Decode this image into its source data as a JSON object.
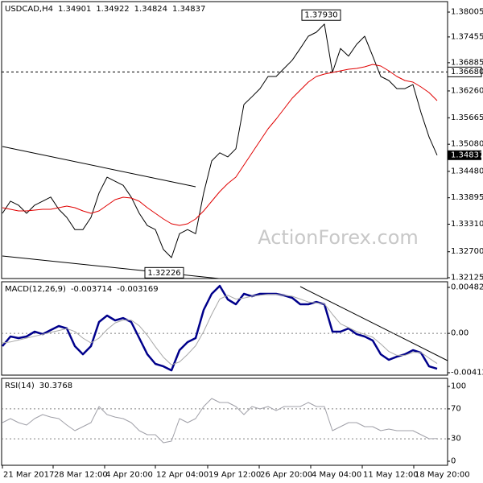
{
  "chart_data": [
    {
      "type": "line",
      "title": "USDCAD,H4",
      "ohlc": [
        1.34901,
        1.34922,
        1.34824,
        1.34837
      ],
      "watermark": "ActionForex.com",
      "x": [
        0,
        1,
        2,
        3,
        4,
        5,
        6,
        7,
        8,
        9,
        10,
        11,
        12,
        13,
        14,
        15,
        16,
        17,
        18,
        19,
        20,
        21,
        22,
        23,
        24,
        25,
        26,
        27,
        28,
        29,
        30,
        31,
        32,
        33,
        34,
        35,
        36,
        37,
        38,
        39,
        40,
        41,
        42,
        43,
        44,
        45,
        46,
        47,
        48,
        49,
        50,
        51,
        52,
        53,
        54
      ],
      "xlim": [
        -0.1,
        55.3
      ],
      "ylim": [
        1.32107,
        1.38237
      ],
      "yticks": [
        1.38005,
        1.37455,
        1.36885,
        {
          "value": 1.3626,
          "label": "1.36260"
        },
        1.35665,
        {
          "value": 1.3508,
          "label": "1.35080"
        },
        {
          "value": 1.3448,
          "label": "1.34480"
        },
        1.33895,
        {
          "value": 1.3331,
          "label": "1.33310"
        },
        {
          "value": 1.327,
          "label": "1.32700"
        },
        1.32125
      ],
      "grid": false,
      "price_label": true,
      "levels": [
        {
          "value": 1.3668,
          "label": "1.36680"
        }
      ],
      "annotations": [
        {
          "value": 1.3793,
          "label": "1.37930",
          "x": 37.2
        },
        {
          "value": 1.32226,
          "x": 17.7
        }
      ],
      "series": [
        {
          "color": "#000000",
          "values": [
            1.3355,
            1.3382,
            1.3373,
            1.3355,
            1.3373,
            1.3382,
            1.3391,
            1.3364,
            1.3346,
            1.3319,
            1.3319,
            1.3346,
            1.34,
            1.3435,
            1.3426,
            1.3417,
            1.3391,
            1.3355,
            1.3328,
            1.3319,
            1.3275,
            1.3257,
            1.331,
            1.3319,
            1.331,
            1.34,
            1.3471,
            1.3489,
            1.348,
            1.3498,
            1.3596,
            1.3613,
            1.3631,
            1.3658,
            1.3658,
            1.3676,
            1.3694,
            1.372,
            1.3747,
            1.3756,
            1.3774,
            1.3667,
            1.372,
            1.3703,
            1.3729,
            1.3747,
            1.3703,
            1.3658,
            1.3649,
            1.3631,
            1.3631,
            1.364,
            1.3578,
            1.3524,
            1.34837
          ]
        },
        {
          "color": "#e00000",
          "values": [
            1.33675,
            1.33639,
            1.33603,
            1.33603,
            1.33621,
            1.33639,
            1.33639,
            1.33675,
            1.3371,
            1.33675,
            1.33603,
            1.3355,
            1.33603,
            1.33728,
            1.33853,
            1.33907,
            1.33889,
            1.33818,
            1.33675,
            1.3355,
            1.33425,
            1.33318,
            1.33283,
            1.33318,
            1.33425,
            1.33603,
            1.33818,
            1.34031,
            1.34209,
            1.34352,
            1.34619,
            1.34886,
            1.35154,
            1.35421,
            1.35635,
            1.35867,
            1.36098,
            1.36276,
            1.36455,
            1.36579,
            1.36633,
            1.36669,
            1.36704,
            1.3674,
            1.36758,
            1.36793,
            1.36847,
            1.36811,
            1.36704,
            1.36579,
            1.3649,
            1.36455,
            1.36348,
            1.36223,
            1.36045
          ]
        }
      ]
    },
    {
      "type": "line",
      "title": "MACD(12,26,9)",
      "x": [
        0,
        1,
        2,
        3,
        4,
        5,
        6,
        7,
        8,
        9,
        10,
        11,
        12,
        13,
        14,
        15,
        16,
        17,
        18,
        19,
        20,
        21,
        22,
        23,
        24,
        25,
        26,
        27,
        28,
        29,
        30,
        31,
        32,
        33,
        34,
        35,
        36,
        37,
        38,
        39,
        40,
        41,
        42,
        43,
        44,
        45,
        46,
        47,
        48,
        49,
        50,
        51,
        52,
        53,
        54
      ],
      "xlim": [
        -0.1,
        55.3
      ],
      "ylim": [
        -0.004382,
        0.005418
      ],
      "yticks": [
        0.004827,
        {
          "value": 0,
          "label": "0.00"
        },
        -0.004129
      ],
      "grid": true,
      "series": [
        {
          "color": "#00008b",
          "width": 2.5,
          "values": [
            -0.00134,
            -0.00033,
            -0.0005,
            -0.00033,
            0.00018,
            -8e-05,
            0.00035,
            0.00077,
            0.00052,
            -0.00134,
            -0.00219,
            -0.00134,
            0.00119,
            0.00187,
            0.00136,
            0.00161,
            0.00119,
            -0.0005,
            -0.00219,
            -0.0032,
            -0.00346,
            -0.00388,
            -0.00176,
            -0.00092,
            -0.0005,
            0.00246,
            0.00415,
            0.00499,
            0.00356,
            0.00305,
            0.00415,
            0.00389,
            0.00415,
            0.00415,
            0.00415,
            0.00398,
            0.00373,
            0.00305,
            0.00305,
            0.0033,
            0.00305,
            0.00018,
            0.00018,
            0.00052,
            -8e-05,
            -0.00033,
            -0.00075,
            -0.00219,
            -0.00278,
            -0.00245,
            -0.00219,
            -0.00176,
            -0.00203,
            -0.00346,
            -0.003714
          ]
        },
        {
          "color": "#a8a8a8",
          "width": 1,
          "values": [
            -0.001,
            -0.0009,
            -0.0007,
            -0.0005,
            -0.0003,
            -0.0001,
            0.0001,
            0.0003,
            0.0005,
            0.0002,
            -0.0005,
            -0.001,
            -0.0005,
            0.0004,
            0.0011,
            0.0014,
            0.0014,
            0.0008,
            -0.0002,
            -0.0014,
            -0.0025,
            -0.0033,
            -0.003,
            -0.0022,
            -0.0013,
            0.0002,
            0.002,
            0.0036,
            0.004,
            0.0036,
            0.0037,
            0.0039,
            0.004,
            0.0041,
            0.0041,
            0.004,
            0.0039,
            0.0036,
            0.0033,
            0.0032,
            0.0031,
            0.002,
            0.001,
            0.0006,
            0.0002,
            -0.0001,
            -0.0004,
            -0.0011,
            -0.0019,
            -0.0023,
            -0.0023,
            -0.002,
            -0.002,
            -0.0026,
            -0.003169
          ]
        }
      ]
    },
    {
      "type": "line",
      "title": "RSI(14)",
      "x": [
        0,
        1,
        2,
        3,
        4,
        5,
        6,
        7,
        8,
        9,
        10,
        11,
        12,
        13,
        14,
        15,
        16,
        17,
        18,
        19,
        20,
        21,
        22,
        23,
        24,
        25,
        26,
        27,
        28,
        29,
        30,
        31,
        32,
        33,
        34,
        35,
        36,
        37,
        38,
        39,
        40,
        41,
        42,
        43,
        44,
        45,
        46,
        47,
        48,
        49,
        50,
        51,
        52,
        53,
        54
      ],
      "xlim": [
        -0.1,
        55.3
      ],
      "ylim": [
        -5.4,
        110.8
      ],
      "yticks": [
        100,
        70,
        30,
        0
      ],
      "grid": true,
      "xticks": [
        {
          "value": 0,
          "label": "21 Mar 2017"
        },
        {
          "value": 6.3,
          "label": "28 Mar 12:00"
        },
        {
          "value": 12.7,
          "label": "4 Apr 20:00"
        },
        {
          "value": 19,
          "label": "12 Apr 04:00"
        },
        {
          "value": 25.5,
          "label": "19 Apr 12:00"
        },
        {
          "value": 31.9,
          "label": "26 Apr 20:00"
        },
        {
          "value": 38.3,
          "label": "4 May 04:00"
        },
        {
          "value": 44.7,
          "label": "11 May 12:00"
        },
        {
          "value": 51.1,
          "label": "18 May 20:00"
        }
      ],
      "series": [
        {
          "color": "#a0a0a8",
          "width": 1,
          "values": [
            51.6,
            57,
            51.6,
            48.4,
            57,
            62.4,
            59.1,
            57,
            48.4,
            40.9,
            46.2,
            51.6,
            73.1,
            62.4,
            59.1,
            57,
            51.6,
            40.9,
            35.5,
            35.5,
            24.7,
            26.9,
            57,
            51.6,
            57,
            73.1,
            83.9,
            78.5,
            78.5,
            73.1,
            62.4,
            73.1,
            69.9,
            73.1,
            67.7,
            73.1,
            73.1,
            73.1,
            78.5,
            73.1,
            73.1,
            40.9,
            46.2,
            51.6,
            51.6,
            46.2,
            46.2,
            40.9,
            43,
            40.9,
            40.9,
            40.9,
            35.5,
            30.1,
            30.3768
          ]
        }
      ]
    }
  ]
}
